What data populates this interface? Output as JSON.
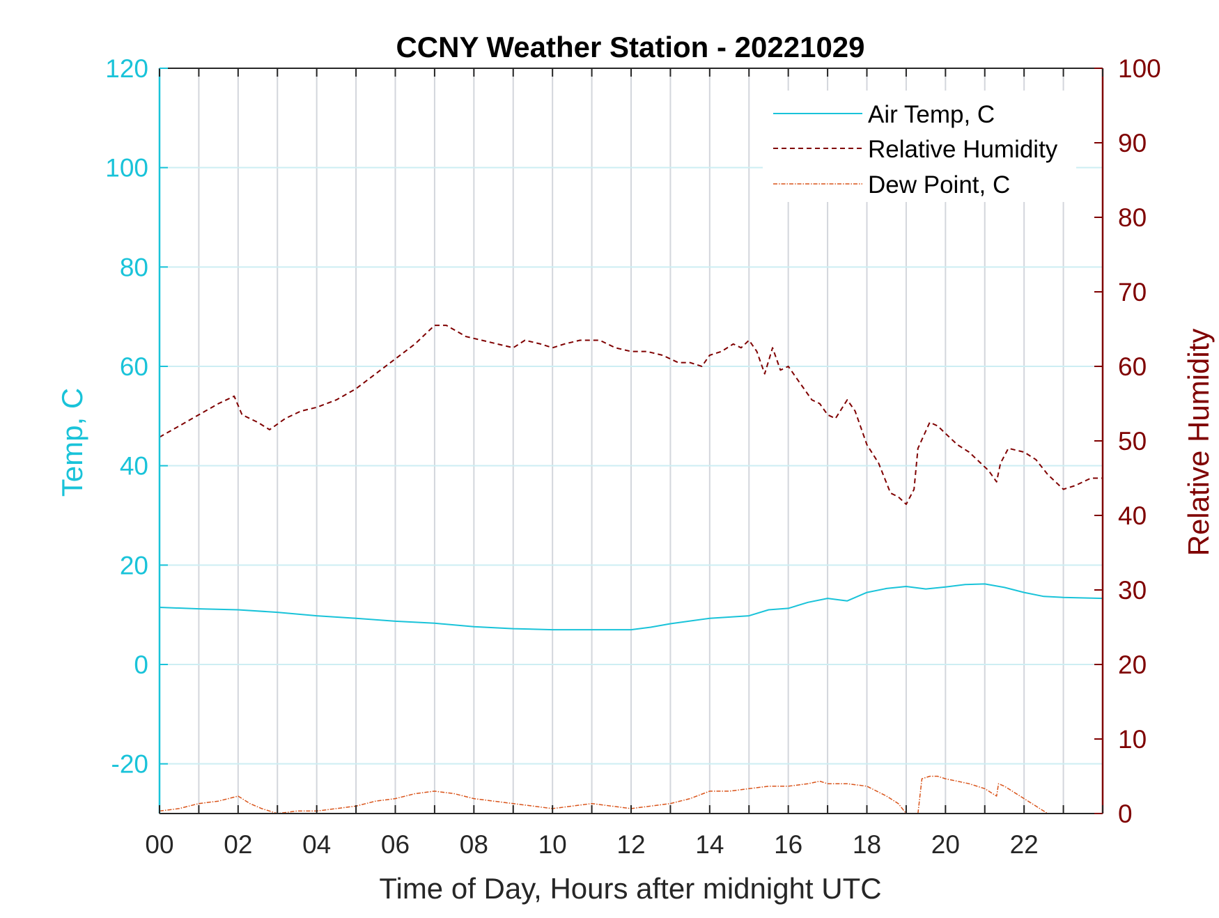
{
  "colors": {
    "air_temp": "#19c3d9",
    "relative_humidity": "#7f0000",
    "dew_point": "#d95319",
    "left_axis": "#19c3d9",
    "right_axis": "#7f0000",
    "grid_vertical": "#d3d6dc",
    "grid_horizontal": "#cdeef3",
    "frame": "#262626"
  },
  "chart_data": {
    "type": "line",
    "title": "CCNY Weather Station - 20221029",
    "xlabel": "Time of Day, Hours after midnight UTC",
    "ylabel_left": "Temp, C",
    "ylabel_right": "Relative Humidity",
    "xlim": [
      0,
      24
    ],
    "ylim_left": [
      -30,
      120
    ],
    "ylim_right": [
      0,
      100
    ],
    "x_ticks": [
      0,
      2,
      4,
      6,
      8,
      10,
      12,
      14,
      16,
      18,
      20,
      22
    ],
    "x_tick_labels": [
      "00",
      "02",
      "04",
      "06",
      "08",
      "10",
      "12",
      "14",
      "16",
      "18",
      "20",
      "22"
    ],
    "y_left_ticks": [
      -20,
      0,
      20,
      40,
      60,
      80,
      100,
      120
    ],
    "y_left_tick_labels": [
      "-20",
      "0",
      "20",
      "40",
      "60",
      "80",
      "100",
      "120"
    ],
    "y_right_ticks": [
      0,
      10,
      20,
      30,
      40,
      50,
      60,
      70,
      80,
      90,
      100
    ],
    "y_right_tick_labels": [
      "0",
      "10",
      "20",
      "30",
      "40",
      "50",
      "60",
      "70",
      "80",
      "90",
      "100"
    ],
    "grid": {
      "vertical_hourly": true,
      "horizontal_left_axis": true
    },
    "legend": {
      "position": "top-right"
    },
    "series": [
      {
        "name": "Air Temp, C",
        "axis": "left",
        "style": "solid",
        "x": [
          0,
          1,
          2,
          3,
          4,
          5,
          6,
          7,
          8,
          9,
          10,
          11,
          12,
          12.5,
          13,
          14,
          15,
          15.5,
          16,
          16.5,
          17,
          17.5,
          18,
          18.5,
          19,
          19.5,
          20,
          20.5,
          21,
          21.5,
          22,
          22.5,
          23,
          24
        ],
        "y": [
          11.5,
          11.2,
          11.0,
          10.5,
          9.8,
          9.3,
          8.7,
          8.3,
          7.6,
          7.2,
          7.0,
          7.0,
          7.0,
          7.5,
          8.2,
          9.3,
          9.8,
          11.0,
          11.3,
          12.5,
          13.3,
          12.8,
          14.5,
          15.3,
          15.7,
          15.2,
          15.6,
          16.1,
          16.2,
          15.5,
          14.5,
          13.7,
          13.5,
          13.3
        ]
      },
      {
        "name": "Relative Humidity",
        "axis": "right",
        "style": "dashed",
        "x": [
          0,
          0.5,
          1,
          1.5,
          1.9,
          2.1,
          2.5,
          2.8,
          3.2,
          3.6,
          4.0,
          4.5,
          5.0,
          5.5,
          6.0,
          6.5,
          7.0,
          7.3,
          7.8,
          8.2,
          8.6,
          9.0,
          9.3,
          9.7,
          10.0,
          10.3,
          10.7,
          11.2,
          11.6,
          12.0,
          12.4,
          12.8,
          13.2,
          13.5,
          13.8,
          14.0,
          14.3,
          14.6,
          14.8,
          15.0,
          15.2,
          15.4,
          15.6,
          15.8,
          16.0,
          16.2,
          16.4,
          16.6,
          16.8,
          17.0,
          17.2,
          17.5,
          17.7,
          18.0,
          18.3,
          18.6,
          18.8,
          19.0,
          19.2,
          19.3,
          19.6,
          19.8,
          20.0,
          20.3,
          20.6,
          20.9,
          21.1,
          21.3,
          21.4,
          21.6,
          22.0,
          22.3,
          22.6,
          22.8,
          23.0,
          23.3,
          23.7,
          24.0
        ],
        "y": [
          50.5,
          52,
          53.5,
          55,
          56,
          53.5,
          52.5,
          51.5,
          53,
          54,
          54.5,
          55.5,
          57,
          59,
          61,
          63,
          65.5,
          65.5,
          64,
          63.5,
          63,
          62.5,
          63.5,
          63,
          62.5,
          63,
          63.5,
          63.5,
          62.5,
          62,
          62,
          61.5,
          60.5,
          60.5,
          60,
          61.5,
          62,
          63,
          62.5,
          63.5,
          62,
          59,
          62.5,
          59.5,
          60,
          58.5,
          57,
          55.5,
          55,
          53.5,
          53,
          55.5,
          54,
          49.5,
          47,
          43,
          42.5,
          41.5,
          43.5,
          49,
          52.5,
          52,
          51,
          49.5,
          48.5,
          47,
          46,
          44.5,
          47,
          49,
          48.5,
          47.5,
          45.5,
          44.5,
          43.5,
          44,
          45,
          45
        ]
      },
      {
        "name": "Dew Point, C",
        "axis": "left",
        "style": "dash-dot",
        "segments": [
          {
            "x": [
              0,
              0.5,
              1,
              1.5,
              2,
              2.3,
              2.6,
              3,
              3.5,
              4,
              4.5,
              5,
              5.5,
              6,
              6.5,
              7,
              7.5,
              8,
              8.5,
              9,
              9.5,
              10,
              10.5,
              11,
              11.5,
              12,
              12.5,
              13,
              13.5,
              14,
              14.5,
              15,
              15.5,
              16,
              16.5,
              16.8,
              17,
              17.5,
              18,
              18.5,
              18.8,
              19.0
            ],
            "y": [
              -29.5,
              -29,
              -28,
              -27.5,
              -26.5,
              -28,
              -29,
              -30,
              -29.5,
              -29.5,
              -29,
              -28.5,
              -27.5,
              -27,
              -26,
              -25.5,
              -26,
              -27,
              -27.5,
              -28,
              -28.5,
              -29,
              -28.5,
              -28,
              -28.5,
              -29,
              -28.5,
              -28,
              -27,
              -25.5,
              -25.5,
              -25,
              -24.5,
              -24.5,
              -24,
              -23.5,
              -24,
              -24,
              -24.5,
              -26.5,
              -28,
              -30
            ]
          },
          {
            "x": [
              19.3,
              19.4,
              19.6,
              19.8,
              20.0,
              20.3,
              20.6,
              21.0,
              21.3,
              21.35,
              21.5,
              22.0,
              22.3,
              22.6
            ],
            "y": [
              -30,
              -23,
              -22.5,
              -22.5,
              -23,
              -23.5,
              -24,
              -25,
              -26.5,
              -24,
              -24.5,
              -27,
              -28.5,
              -30
            ]
          }
        ]
      }
    ]
  }
}
